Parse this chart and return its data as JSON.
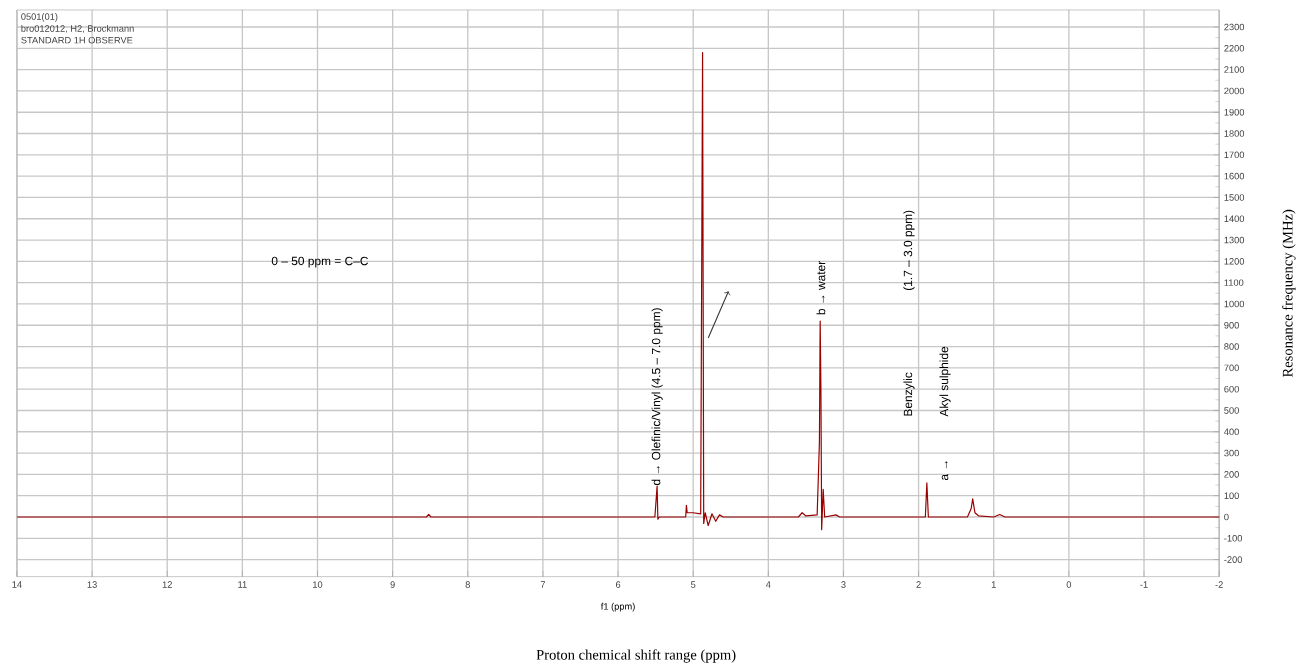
{
  "chart_data": {
    "type": "line",
    "xlabel": "f1 (ppm)",
    "ylabel": "Resonance frequency (MHz)",
    "annotations": [
      "0501(01)",
      "bro012012, H2, Brockmann",
      "STANDARD 1H OBSERVE",
      "0 – 50 ppm = C–C",
      "Proton chemical shift range (ppm)",
      {
        "text": "d → Olefinic/Vinyl (4.5 – 7.0 ppm)",
        "x": 5.48,
        "y": 140
      },
      {
        "text": "b → water",
        "x": 3.3,
        "y": 940
      },
      "(1.7 – 3.0 ppm)",
      "Benzylic",
      "Akyl sulphide",
      "a →"
    ],
    "series": [
      {
        "color": "#990000",
        "x": [
          14,
          8.55,
          8.52,
          8.49,
          5.51,
          5.48,
          5.47,
          5.45,
          5.1,
          5.09,
          5.08,
          5.0,
          4.9,
          4.875,
          4.86,
          4.84,
          4.8,
          4.75,
          4.7,
          4.65,
          4.6,
          3.6,
          3.55,
          3.5,
          3.35,
          3.32,
          3.31,
          3.3,
          3.29,
          3.27,
          3.25,
          3.1,
          3.05,
          1.91,
          1.89,
          1.87,
          1.35,
          1.3,
          1.28,
          1.25,
          1.2,
          1.0,
          0.92,
          0.85,
          -2
        ],
        "values": [
          0,
          0,
          12,
          0,
          0,
          145,
          -10,
          0,
          0,
          55,
          20,
          20,
          15,
          2180,
          -30,
          20,
          -40,
          15,
          -20,
          10,
          0,
          0,
          20,
          5,
          10,
          350,
          920,
          600,
          -60,
          130,
          0,
          10,
          0,
          0,
          160,
          0,
          0,
          40,
          85,
          20,
          5,
          0,
          12,
          0,
          0
        ]
      }
    ],
    "xlim": [
      14,
      -2
    ],
    "xticks": [
      14,
      13,
      12,
      11,
      10,
      9,
      8,
      7,
      6,
      5,
      4,
      3,
      2,
      1,
      0,
      -1,
      -2
    ],
    "ylim": [
      -280,
      2380
    ],
    "yticks": [
      -200,
      -100,
      0,
      100,
      200,
      300,
      400,
      500,
      600,
      700,
      800,
      900,
      1000,
      1100,
      1200,
      1300,
      1400,
      1500,
      1600,
      1700,
      1800,
      1900,
      2000,
      2100,
      2200,
      2300
    ],
    "grid": true,
    "marker": "none",
    "line_style": "solid"
  }
}
